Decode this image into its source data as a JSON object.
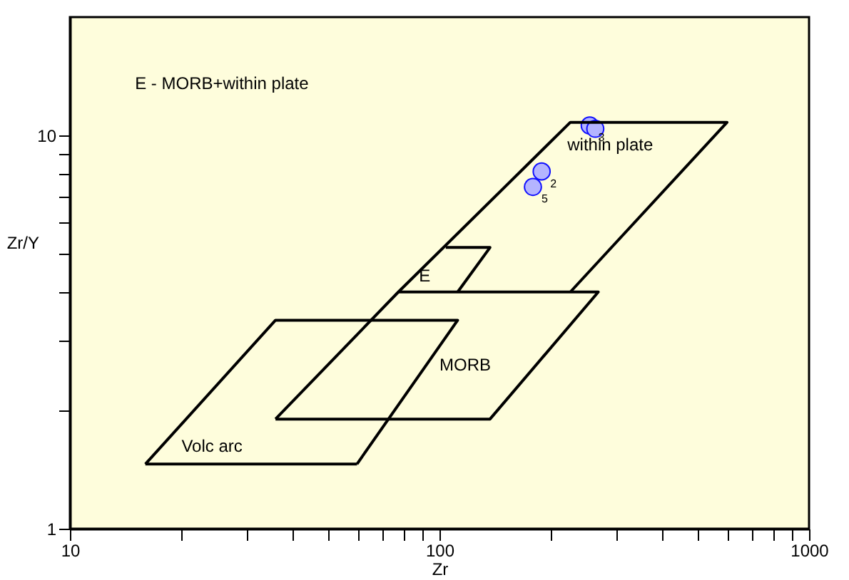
{
  "chart_data": {
    "type": "scatter",
    "xlabel": "Zr",
    "ylabel": "Zr/Y",
    "log": "xy",
    "grid": false,
    "legend": false,
    "marker": "circle",
    "xlim": [
      10,
      1000
    ],
    "ylim": [
      1,
      20
    ],
    "xticks": [
      10,
      {
        "value": 20,
        "label": null
      },
      {
        "value": 30,
        "label": null
      },
      {
        "value": 40,
        "label": null
      },
      {
        "value": 50,
        "label": null
      },
      {
        "value": 60,
        "label": null
      },
      {
        "value": 70,
        "label": null
      },
      {
        "value": 80,
        "label": null
      },
      {
        "value": 90,
        "label": null
      },
      100,
      {
        "value": 200,
        "label": null
      },
      {
        "value": 300,
        "label": null
      },
      {
        "value": 400,
        "label": null
      },
      {
        "value": 500,
        "label": null
      },
      {
        "value": 600,
        "label": null
      },
      {
        "value": 700,
        "label": null
      },
      {
        "value": 800,
        "label": null
      },
      {
        "value": 900,
        "label": null
      },
      1000
    ],
    "yticks": [
      1,
      {
        "value": 2,
        "label": null
      },
      {
        "value": 3,
        "label": null
      },
      {
        "value": 4,
        "label": null
      },
      {
        "value": 5,
        "label": null
      },
      {
        "value": 6,
        "label": null
      },
      {
        "value": 7,
        "label": null
      },
      {
        "value": 8,
        "label": null
      },
      {
        "value": 9,
        "label": null
      },
      10
    ],
    "series": [
      {
        "color": "#b4b4ff",
        "x": [
          255,
          264,
          189,
          179
        ],
        "values": [
          10.6,
          10.4,
          8.1,
          7.4
        ]
      },
      {
        "type": "line",
        "color": "#000000",
        "marker": "none",
        "x": [
          36,
          77.4,
          226,
          600,
          226
        ],
        "values": [
          1.9,
          4,
          10.8,
          10.8,
          4
        ]
      },
      {
        "type": "line",
        "color": "#000000",
        "marker": "none",
        "x": [
          104,
          137,
          112
        ],
        "values": [
          5.19,
          5.19,
          4
        ]
      },
      {
        "type": "line",
        "color": "#000000",
        "marker": "none",
        "x": [
          77.4,
          269,
          137,
          36
        ],
        "values": [
          4,
          4,
          1.9,
          1.9
        ]
      },
      {
        "type": "line",
        "color": "#000000",
        "marker": "none",
        "x": [
          16,
          36,
          112,
          59.8
        ],
        "values": [
          1.46,
          3.39,
          3.39,
          1.46
        ]
      },
      {
        "type": "line",
        "color": "#000000",
        "marker": "none",
        "x": [
          16,
          59.8
        ],
        "values": [
          1.46,
          1.46
        ]
      }
    ],
    "annotations": [
      "E - MORB+within plate",
      "within plate",
      {
        "text": "E",
        "x": 88,
        "y": 4.4
      },
      "MORB",
      "Volc arc",
      {
        "text": "3",
        "x": 255,
        "y": 10.6
      },
      {
        "text": "2",
        "x": 189,
        "y": 8.1
      },
      {
        "text": "5",
        "x": 179,
        "y": 7.4
      }
    ]
  }
}
